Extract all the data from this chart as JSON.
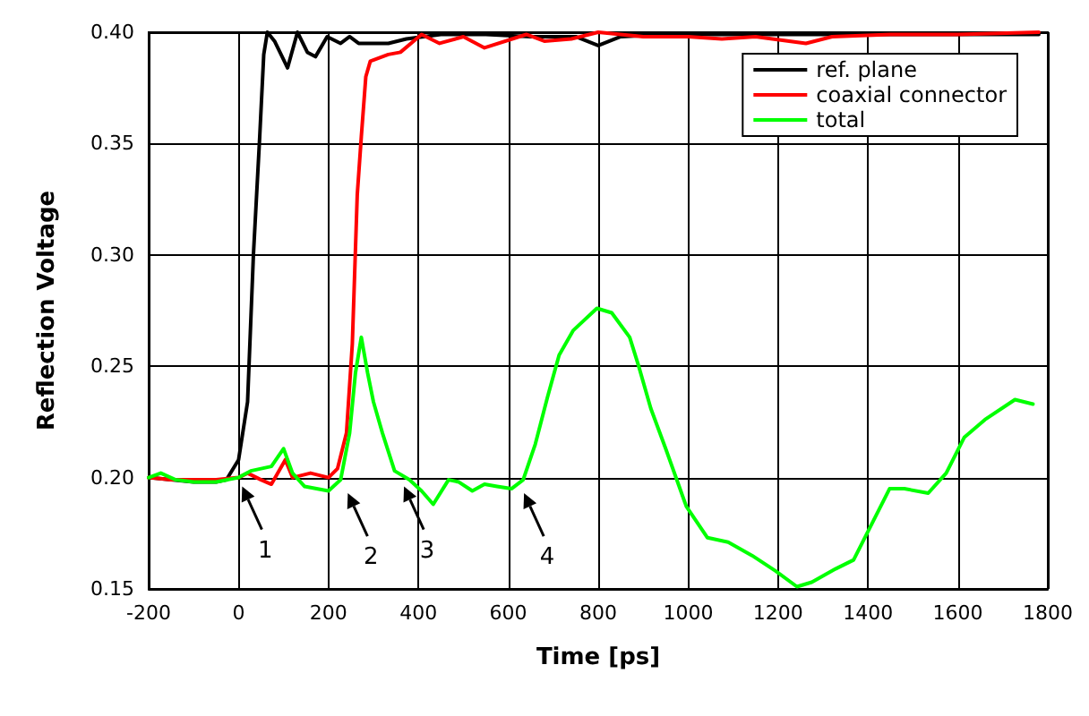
{
  "chart_data": {
    "type": "line",
    "xlabel": "Time [ps]",
    "ylabel": "Reflection Voltage",
    "xlim": [
      -200,
      1800
    ],
    "xticks": [
      -200,
      0,
      200,
      400,
      600,
      800,
      1000,
      1200,
      1400,
      1600,
      1800
    ],
    "ylim": [
      0.15,
      0.4
    ],
    "yticks": [
      {
        "value": 0.15,
        "label": "0.15"
      },
      {
        "value": 0.2,
        "label": "0.20"
      },
      {
        "value": 0.25,
        "label": "0.25"
      },
      {
        "value": 0.3,
        "label": "0.30"
      },
      {
        "value": 0.35,
        "label": "0.35"
      },
      {
        "value": 0.4,
        "label": "0.40"
      }
    ],
    "grid": true,
    "legend": "top right",
    "marker": "none",
    "line_style": "solid",
    "series": [
      {
        "name": "ref. plane",
        "color": "#000000",
        "x": [
          -200,
          -150,
          -100,
          -50,
          -27,
          0,
          20,
          33,
          47,
          56,
          64,
          80,
          109,
          131,
          153,
          171,
          197,
          227,
          247,
          267,
          333,
          373,
          450,
          550,
          650,
          750,
          800,
          850,
          950,
          1100,
          1300,
          1500,
          1700,
          1780
        ],
        "values": [
          0.2,
          0.199,
          0.198,
          0.198,
          0.199,
          0.208,
          0.234,
          0.3,
          0.353,
          0.39,
          0.4,
          0.396,
          0.384,
          0.4,
          0.391,
          0.389,
          0.398,
          0.395,
          0.398,
          0.395,
          0.395,
          0.397,
          0.399,
          0.399,
          0.398,
          0.398,
          0.394,
          0.398,
          0.399,
          0.399,
          0.399,
          0.399,
          0.399,
          0.399
        ]
      },
      {
        "name": "coaxial connector",
        "color": "#ff0000",
        "x": [
          -200,
          -150,
          -100,
          -50,
          0,
          20,
          50,
          73,
          104,
          120,
          160,
          200,
          220,
          240,
          253,
          264,
          273,
          283,
          293,
          333,
          360,
          407,
          447,
          500,
          547,
          640,
          680,
          740,
          800,
          900,
          1000,
          1075,
          1150,
          1262,
          1320,
          1450,
          1600,
          1780
        ],
        "values": [
          0.2,
          0.199,
          0.199,
          0.199,
          0.2,
          0.202,
          0.199,
          0.197,
          0.208,
          0.2,
          0.202,
          0.2,
          0.204,
          0.22,
          0.26,
          0.327,
          0.353,
          0.38,
          0.387,
          0.39,
          0.391,
          0.399,
          0.395,
          0.398,
          0.393,
          0.399,
          0.396,
          0.397,
          0.4,
          0.398,
          0.398,
          0.397,
          0.398,
          0.395,
          0.398,
          0.399,
          0.399,
          0.4
        ]
      },
      {
        "name": "total",
        "color": "#00ff00",
        "x": [
          -200,
          -173,
          -140,
          -100,
          -50,
          0,
          27,
          73,
          100,
          120,
          147,
          200,
          227,
          247,
          260,
          273,
          287,
          300,
          320,
          347,
          380,
          407,
          433,
          467,
          490,
          520,
          547,
          575,
          607,
          633,
          660,
          687,
          713,
          744,
          797,
          830,
          870,
          890,
          917,
          950,
          996,
          1043,
          1089,
          1142,
          1195,
          1242,
          1275,
          1328,
          1368,
          1408,
          1448,
          1481,
          1534,
          1574,
          1614,
          1660,
          1727,
          1767
        ],
        "values": [
          0.2,
          0.202,
          0.199,
          0.198,
          0.198,
          0.2,
          0.203,
          0.205,
          0.213,
          0.202,
          0.196,
          0.194,
          0.199,
          0.22,
          0.247,
          0.263,
          0.247,
          0.234,
          0.22,
          0.203,
          0.199,
          0.194,
          0.188,
          0.199,
          0.198,
          0.194,
          0.197,
          0.196,
          0.195,
          0.199,
          0.215,
          0.236,
          0.255,
          0.266,
          0.276,
          0.274,
          0.263,
          0.25,
          0.231,
          0.213,
          0.187,
          0.173,
          0.171,
          0.165,
          0.158,
          0.151,
          0.153,
          0.159,
          0.163,
          0.179,
          0.195,
          0.195,
          0.193,
          0.202,
          0.218,
          0.226,
          0.235,
          0.233
        ]
      }
    ],
    "annotations": [
      {
        "text": "1",
        "x": 0,
        "y": 0.2
      },
      {
        "text": "2",
        "x": 235,
        "y": 0.197
      },
      {
        "text": "3",
        "x": 360,
        "y": 0.2
      },
      {
        "text": "4",
        "x": 627,
        "y": 0.197
      }
    ]
  }
}
